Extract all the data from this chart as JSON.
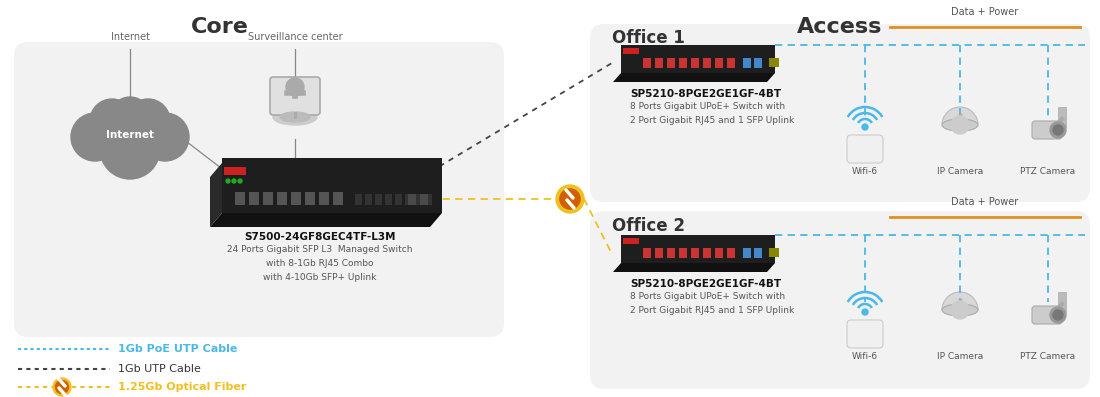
{
  "title_core": "Core",
  "title_access": "Access",
  "bg_color": "#ffffff",
  "office1_title": "Office 1",
  "office2_title": "Office 2",
  "switch_core_label": "S7500-24GF8GEC4TF-L3M",
  "switch_core_desc": [
    "24 Ports Gigabit SFP L3  Managed Switch",
    "with 8-1Gb RJ45 Combo",
    "with 4-10Gb SFP+ Uplink"
  ],
  "switch_access_label": "SP5210-8PGE2GE1GF-4BT",
  "switch_access_desc": [
    "8 Ports Gigabit UPoE+ Switch with",
    "2 Port Gigabit RJ45 and 1 SFP Uplink"
  ],
  "data_power_label": "Data + Power",
  "legend_poe": "1Gb PoE UTP Cable",
  "legend_utp": "1Gb UTP Cable",
  "legend_fiber": "1.25Gb Optical Fiber",
  "internet_label": "Internet",
  "surveillance_label": "Surveillance center",
  "device1_label": "Wifi-6",
  "device2_label": "IP Camera",
  "device3_label": "PTZ Camera",
  "color_poe": "#4ab8e8",
  "color_utp": "#444444",
  "color_fiber": "#f0c020",
  "color_orange": "#e09020",
  "color_text_dark": "#333333",
  "color_label_bold": "#111111",
  "box_color": "#f2f2f2"
}
